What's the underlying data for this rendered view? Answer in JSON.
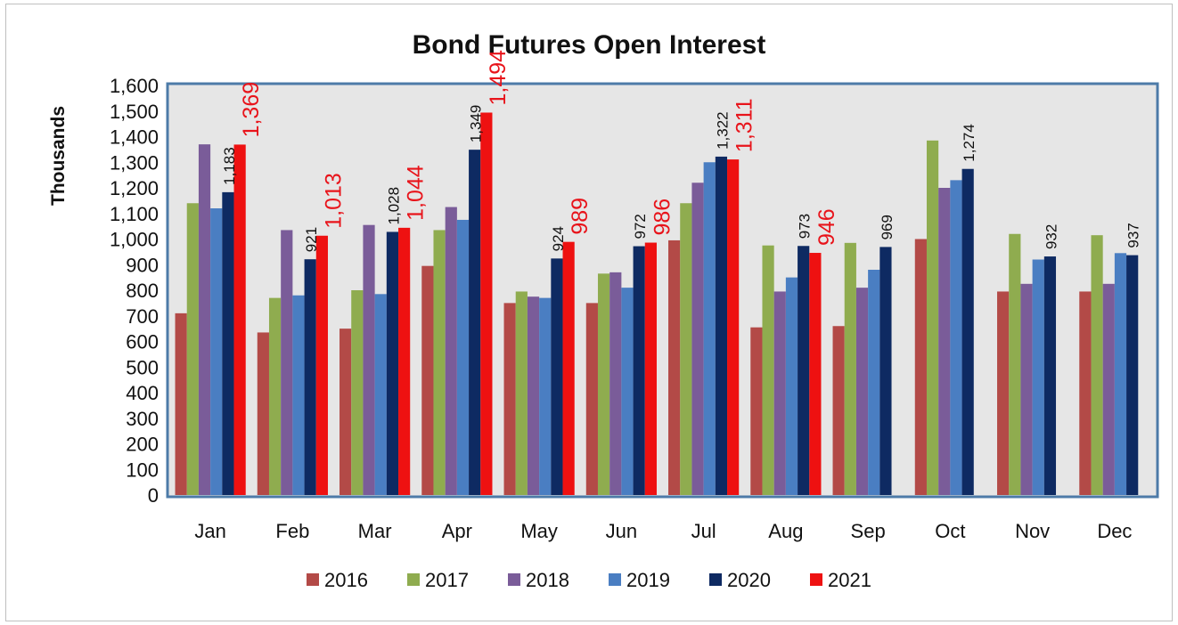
{
  "chart_data": {
    "type": "bar",
    "title": "Bond Futures Open Interest",
    "ylabel": "Thousands",
    "xlabel": "",
    "ylim": [
      0,
      1600
    ],
    "ytick_step": 100,
    "yticks": [
      "0",
      "100",
      "200",
      "300",
      "400",
      "500",
      "600",
      "700",
      "800",
      "900",
      "1,000",
      "1,100",
      "1,200",
      "1,300",
      "1,400",
      "1,500",
      "1,600"
    ],
    "grid": false,
    "legend_position": "bottom",
    "categories": [
      "Jan",
      "Feb",
      "Mar",
      "Apr",
      "May",
      "Jun",
      "Jul",
      "Aug",
      "Sep",
      "Oct",
      "Nov",
      "Dec"
    ],
    "series": [
      {
        "name": "2016",
        "color": "#b34a47",
        "values": [
          710,
          635,
          650,
          895,
          750,
          750,
          995,
          655,
          660,
          1000,
          795,
          795
        ]
      },
      {
        "name": "2017",
        "color": "#8fac4f",
        "values": [
          1140,
          770,
          800,
          1035,
          795,
          865,
          1140,
          975,
          985,
          1385,
          1020,
          1015
        ]
      },
      {
        "name": "2018",
        "color": "#7a5c99",
        "values": [
          1370,
          1035,
          1055,
          1125,
          775,
          870,
          1220,
          795,
          810,
          1200,
          825,
          825
        ]
      },
      {
        "name": "2019",
        "color": "#4a7ec2",
        "values": [
          1120,
          780,
          785,
          1075,
          770,
          810,
          1300,
          850,
          880,
          1230,
          920,
          945
        ]
      },
      {
        "name": "2020",
        "color": "#0e2a62",
        "values": [
          1183,
          921,
          1028,
          1349,
          924,
          972,
          1322,
          973,
          969,
          1274,
          932,
          937
        ]
      },
      {
        "name": "2021",
        "color": "#ee1111",
        "values": [
          1369,
          1013,
          1044,
          1494,
          989,
          986,
          1311,
          946,
          null,
          null,
          null,
          null
        ]
      }
    ],
    "data_labels": [
      {
        "series": "2020",
        "category": "Jan",
        "text": "1,183"
      },
      {
        "series": "2021",
        "category": "Jan",
        "text": "1,369"
      },
      {
        "series": "2020",
        "category": "Feb",
        "text": "921"
      },
      {
        "series": "2021",
        "category": "Feb",
        "text": "1,013"
      },
      {
        "series": "2020",
        "category": "Mar",
        "text": "1,028"
      },
      {
        "series": "2021",
        "category": "Mar",
        "text": "1,044"
      },
      {
        "series": "2020",
        "category": "Apr",
        "text": "1,349"
      },
      {
        "series": "2021",
        "category": "Apr",
        "text": "1,494"
      },
      {
        "series": "2020",
        "category": "May",
        "text": "924"
      },
      {
        "series": "2021",
        "category": "May",
        "text": "989"
      },
      {
        "series": "2020",
        "category": "Jun",
        "text": "972"
      },
      {
        "series": "2021",
        "category": "Jun",
        "text": "986"
      },
      {
        "series": "2020",
        "category": "Jul",
        "text": "1,322"
      },
      {
        "series": "2021",
        "category": "Jul",
        "text": "1,311"
      },
      {
        "series": "2020",
        "category": "Aug",
        "text": "973"
      },
      {
        "series": "2021",
        "category": "Aug",
        "text": "946"
      },
      {
        "series": "2020",
        "category": "Sep",
        "text": "969"
      },
      {
        "series": "2020",
        "category": "Oct",
        "text": "1,274"
      },
      {
        "series": "2020",
        "category": "Nov",
        "text": "932"
      },
      {
        "series": "2020",
        "category": "Dec",
        "text": "937"
      }
    ]
  }
}
